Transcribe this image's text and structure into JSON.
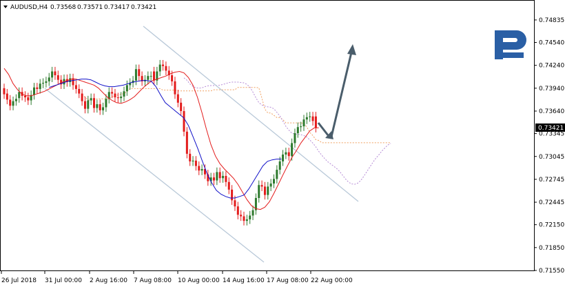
{
  "header": {
    "symbol": "AUDUSD,H4",
    "open": "0.73568",
    "high": "0.73571",
    "low": "0.73417",
    "close": "0.73421"
  },
  "colors": {
    "bull": "#2d7a2d",
    "bear": "#e31b1b",
    "kijun": "#1010c8",
    "tenkan": "#e31b1b",
    "span_b": "#f0a060",
    "span_a": "#b58ad6",
    "channel": "#b8c8d8",
    "arrow": "#4a5d6b",
    "logo": "#2a5fa5",
    "price_tag_bg": "#000000",
    "price_tag_text": "#ffffff"
  },
  "logo": {
    "name": "roboforex-logo-icon"
  },
  "chart_data": {
    "type": "candlestick",
    "title": "AUDUSD,H4",
    "ylim": [
      0.7155,
      0.7497
    ],
    "y_ticks": [
      "0.74835",
      "0.74540",
      "0.74240",
      "0.73940",
      "0.73640",
      "0.73345",
      "0.73045",
      "0.72745",
      "0.72445",
      "0.72150",
      "0.71850",
      "0.71550"
    ],
    "x_ticks": [
      "26 Jul 2018",
      "31 Jul 00:00",
      "2 Aug 16:00",
      "7 Aug 08:00",
      "10 Aug 00:00",
      "14 Aug 16:00",
      "17 Aug 08:00",
      "22 Aug 00:00"
    ],
    "current_price": "0.73421",
    "closes": [
      0.7386,
      0.7379,
      0.7371,
      0.7377,
      0.738,
      0.7389,
      0.7384,
      0.7382,
      0.7378,
      0.7385,
      0.7395,
      0.7393,
      0.74,
      0.7401,
      0.7403,
      0.7408,
      0.7416,
      0.7411,
      0.7405,
      0.7399,
      0.7406,
      0.7402,
      0.7407,
      0.7398,
      0.7393,
      0.7387,
      0.7377,
      0.7367,
      0.7378,
      0.7381,
      0.7368,
      0.7373,
      0.7365,
      0.7369,
      0.738,
      0.7389,
      0.7387,
      0.7382,
      0.7381,
      0.7383,
      0.739,
      0.7398,
      0.7401,
      0.7404,
      0.7419,
      0.741,
      0.7403,
      0.7405,
      0.741,
      0.741,
      0.7404,
      0.7416,
      0.7425,
      0.7423,
      0.7417,
      0.7411,
      0.7403,
      0.7386,
      0.7375,
      0.7364,
      0.7337,
      0.7308,
      0.7298,
      0.7299,
      0.7292,
      0.7286,
      0.7288,
      0.7281,
      0.7272,
      0.7277,
      0.7273,
      0.7284,
      0.7276,
      0.7279,
      0.7271,
      0.7261,
      0.7247,
      0.7239,
      0.7228,
      0.7226,
      0.722,
      0.7222,
      0.7227,
      0.7234,
      0.725,
      0.7267,
      0.7265,
      0.7254,
      0.7265,
      0.7269,
      0.7275,
      0.7287,
      0.7298,
      0.7307,
      0.731,
      0.7305,
      0.7322,
      0.7335,
      0.7343,
      0.7344,
      0.7353,
      0.7356,
      0.7357,
      0.7351,
      0.7342
    ],
    "opens": [
      0.7394,
      0.7387,
      0.7379,
      0.7371,
      0.7377,
      0.7381,
      0.7389,
      0.7384,
      0.7382,
      0.7378,
      0.7385,
      0.7395,
      0.7393,
      0.74,
      0.7401,
      0.7403,
      0.7408,
      0.7416,
      0.7411,
      0.7405,
      0.7399,
      0.7406,
      0.7402,
      0.7407,
      0.7398,
      0.7393,
      0.7387,
      0.7377,
      0.7367,
      0.7378,
      0.7381,
      0.7368,
      0.7373,
      0.7365,
      0.7369,
      0.738,
      0.7389,
      0.7387,
      0.7382,
      0.7381,
      0.7383,
      0.739,
      0.7398,
      0.7401,
      0.7404,
      0.7419,
      0.741,
      0.7403,
      0.7405,
      0.741,
      0.7416,
      0.7404,
      0.7416,
      0.7425,
      0.7423,
      0.7417,
      0.7411,
      0.7403,
      0.7386,
      0.7375,
      0.7364,
      0.7337,
      0.7308,
      0.7298,
      0.7299,
      0.7292,
      0.7286,
      0.7288,
      0.7281,
      0.7272,
      0.7277,
      0.7273,
      0.7284,
      0.7276,
      0.7279,
      0.7271,
      0.7261,
      0.7247,
      0.7239,
      0.7228,
      0.7226,
      0.722,
      0.7222,
      0.7227,
      0.7234,
      0.725,
      0.7267,
      0.7265,
      0.7254,
      0.7265,
      0.7269,
      0.7275,
      0.7287,
      0.7298,
      0.7307,
      0.731,
      0.7305,
      0.7322,
      0.7335,
      0.7343,
      0.7344,
      0.7353,
      0.7356,
      0.7357,
      0.7357
    ],
    "tenkan_sen": [
      0.742,
      0.7412,
      0.74,
      0.7392,
      0.7386,
      0.7384,
      0.7384,
      0.7386,
      0.7388,
      0.739,
      0.7393,
      0.7396,
      0.7399,
      0.7402,
      0.7404,
      0.7406,
      0.7406,
      0.7404,
      0.7402,
      0.74,
      0.7398,
      0.7394,
      0.7388,
      0.7382,
      0.7378,
      0.7375,
      0.7374,
      0.7376,
      0.7379,
      0.7383,
      0.7389,
      0.7395,
      0.74,
      0.7404,
      0.7406,
      0.7408,
      0.741,
      0.7413,
      0.7415,
      0.7416,
      0.7414,
      0.7408,
      0.7398,
      0.7382,
      0.7362,
      0.734,
      0.732,
      0.7305,
      0.7295,
      0.7288,
      0.7282,
      0.7276,
      0.7268,
      0.7258,
      0.7248,
      0.724,
      0.7236,
      0.7235,
      0.7238,
      0.7245,
      0.7256,
      0.7268,
      0.728,
      0.7292,
      0.7303,
      0.7312,
      0.7322,
      0.733,
      0.7338,
      0.7342,
      0.7342
    ],
    "kijun_sen": [
      0.7395,
      0.7397,
      0.7399,
      0.7401,
      0.7403,
      0.7404,
      0.7405,
      0.7406,
      0.7406,
      0.7405,
      0.7402,
      0.7399,
      0.7397,
      0.7396,
      0.7396,
      0.7397,
      0.7398,
      0.74,
      0.7402,
      0.7403,
      0.7404,
      0.7404,
      0.7403,
      0.7396,
      0.7385,
      0.7375,
      0.737,
      0.7365,
      0.736,
      0.7355,
      0.7345,
      0.733,
      0.7315,
      0.7298,
      0.7282,
      0.727,
      0.726,
      0.7255,
      0.7252,
      0.725,
      0.725,
      0.7252,
      0.7254,
      0.7262,
      0.7272,
      0.7282,
      0.7292,
      0.7298,
      0.73,
      0.7301,
      0.7301
    ]
  }
}
